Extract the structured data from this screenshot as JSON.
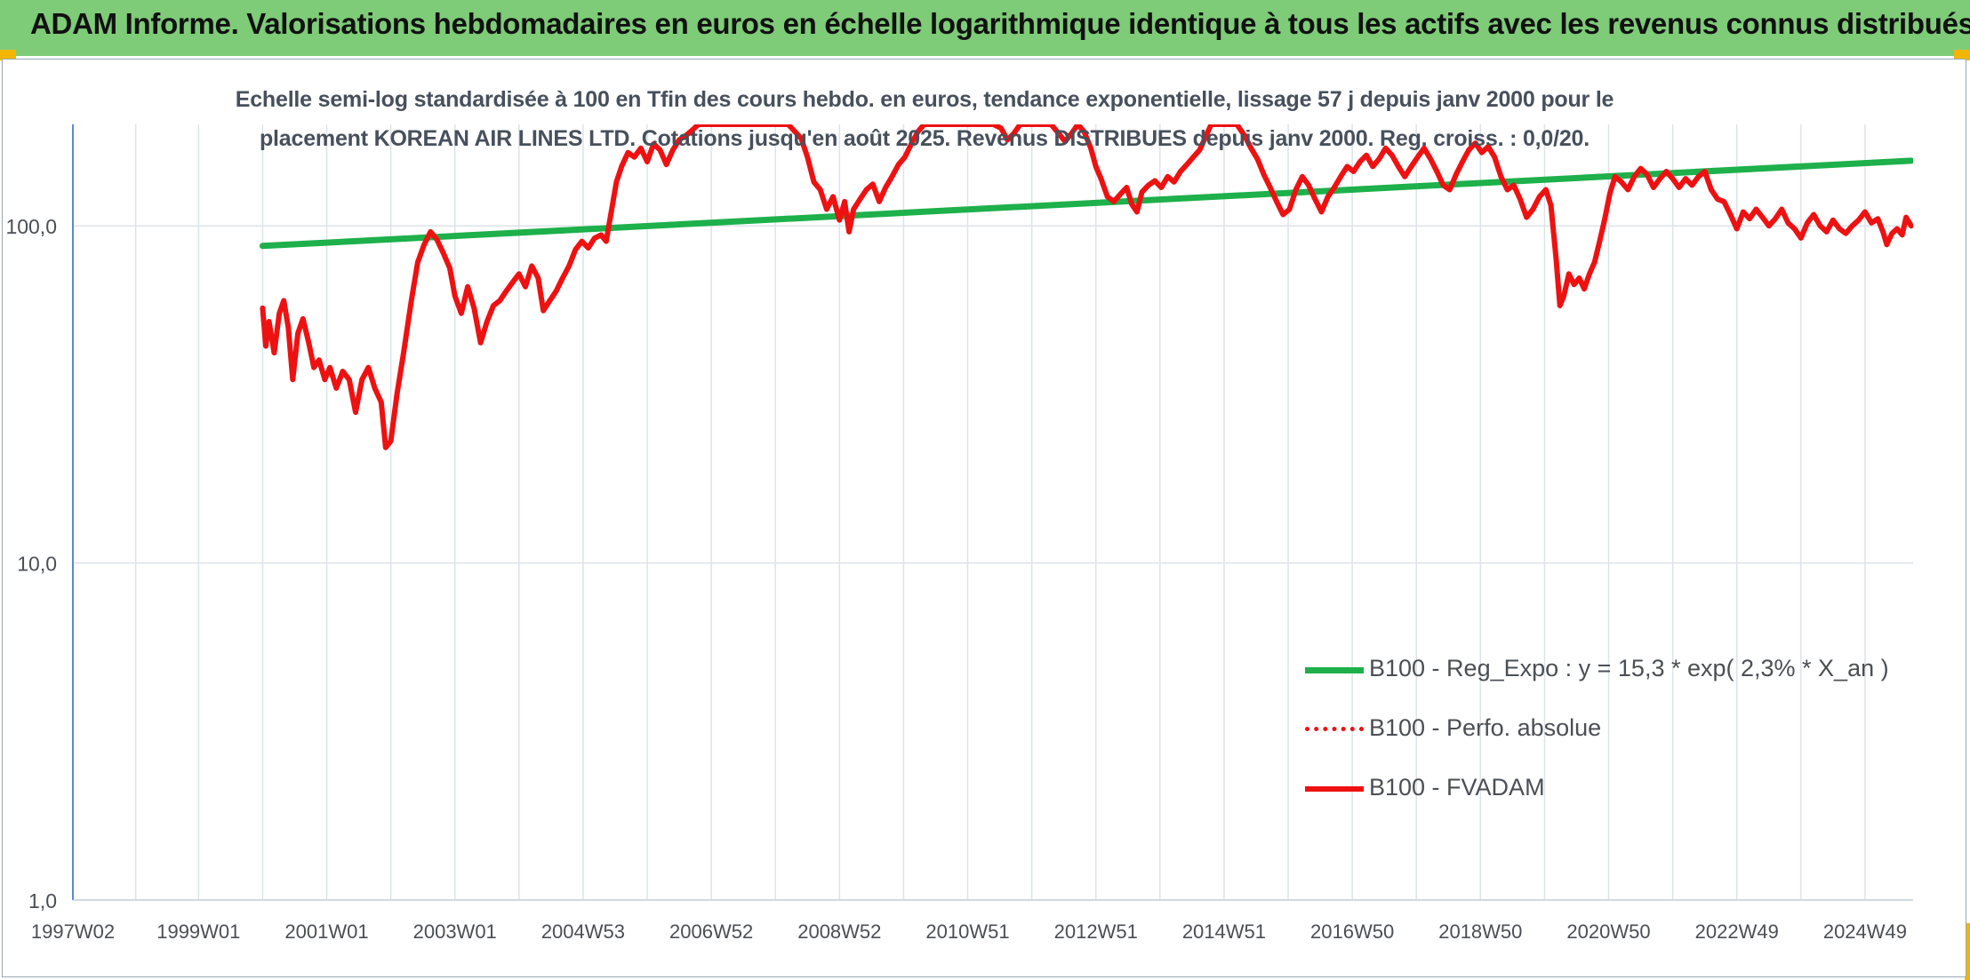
{
  "banner": {
    "title": "ADAM Informe. Valorisations hebdomadaires en euros en échelle logarithmique identique à tous les actifs avec les revenus connus distribués"
  },
  "subtitle": {
    "line1": "Echelle semi-log standardisée à 100 en Tfin des cours hebdo. en euros, tendance exponentielle, lissage 57 j depuis janv 2000 pour le",
    "line2": "placement KOREAN AIR LINES LTD. Cotations jusqu'en août 2025. Revenus DISTRIBUES depuis janv 2000. Reg. croiss. : 0,0/20."
  },
  "colors": {
    "banner": "#7ecb78",
    "regression": "#1db04b",
    "fvadam": "#ee1111",
    "perfo": "#ee1111",
    "grid": "#dde3ea",
    "axis": "#5b8cc4"
  },
  "chart_data": {
    "type": "line",
    "y_scale": "log",
    "ylim": [
      1,
      200
    ],
    "y_ticks": [
      {
        "value": 1,
        "label": "1,0"
      },
      {
        "value": 10,
        "label": "10,0"
      },
      {
        "value": 100,
        "label": "100,0"
      }
    ],
    "x_range": [
      1997.04,
      2025.75
    ],
    "x_ticks": [
      {
        "t": 1997.04,
        "label": "1997W02"
      },
      {
        "t": 1999.0,
        "label": "1999W01"
      },
      {
        "t": 2001.0,
        "label": "2001W01"
      },
      {
        "t": 2003.0,
        "label": "2003W01"
      },
      {
        "t": 2005.0,
        "label": "2004W53"
      },
      {
        "t": 2007.0,
        "label": "2006W52"
      },
      {
        "t": 2009.0,
        "label": "2008W52"
      },
      {
        "t": 2011.0,
        "label": "2010W51"
      },
      {
        "t": 2013.0,
        "label": "2012W51"
      },
      {
        "t": 2015.0,
        "label": "2014W51"
      },
      {
        "t": 2017.0,
        "label": "2016W50"
      },
      {
        "t": 2019.0,
        "label": "2018W50"
      },
      {
        "t": 2021.0,
        "label": "2020W50"
      },
      {
        "t": 2023.0,
        "label": "2022W49"
      },
      {
        "t": 2025.0,
        "label": "2024W49"
      }
    ],
    "grid": true,
    "legend_position": "bottom-right",
    "series": [
      {
        "name": "B100 - Reg_Expo : y = 15,3 * exp( 2,3% *  X_an )",
        "color": "#1db04b",
        "style": "solid",
        "width": 7,
        "points": [
          [
            2000.0,
            87.2
          ],
          [
            2025.72,
            156.0
          ]
        ]
      },
      {
        "name": "B100 - Perfo. absolue",
        "color": "#ee1111",
        "style": "dotted",
        "width": 5,
        "points": []
      },
      {
        "name": "B100 - FVADAM",
        "color": "#ee1111",
        "style": "solid",
        "width": 6,
        "points": [
          [
            2000.0,
            57
          ],
          [
            2000.05,
            44
          ],
          [
            2000.1,
            52
          ],
          [
            2000.18,
            42
          ],
          [
            2000.26,
            55
          ],
          [
            2000.33,
            60
          ],
          [
            2000.4,
            50
          ],
          [
            2000.47,
            35
          ],
          [
            2000.55,
            48
          ],
          [
            2000.63,
            53
          ],
          [
            2000.72,
            45
          ],
          [
            2000.8,
            38
          ],
          [
            2000.88,
            40
          ],
          [
            2000.97,
            35
          ],
          [
            2001.05,
            38
          ],
          [
            2001.15,
            33
          ],
          [
            2001.25,
            37
          ],
          [
            2001.35,
            35
          ],
          [
            2001.45,
            28
          ],
          [
            2001.55,
            35
          ],
          [
            2001.65,
            38
          ],
          [
            2001.75,
            33
          ],
          [
            2001.85,
            30
          ],
          [
            2001.92,
            22
          ],
          [
            2002.0,
            23
          ],
          [
            2002.1,
            32
          ],
          [
            2002.2,
            42
          ],
          [
            2002.32,
            60
          ],
          [
            2002.42,
            78
          ],
          [
            2002.52,
            88
          ],
          [
            2002.62,
            96
          ],
          [
            2002.72,
            91
          ],
          [
            2002.82,
            83
          ],
          [
            2002.92,
            75
          ],
          [
            2003.0,
            62
          ],
          [
            2003.1,
            55
          ],
          [
            2003.2,
            66
          ],
          [
            2003.3,
            57
          ],
          [
            2003.4,
            45
          ],
          [
            2003.5,
            52
          ],
          [
            2003.6,
            58
          ],
          [
            2003.7,
            60
          ],
          [
            2003.8,
            64
          ],
          [
            2003.9,
            68
          ],
          [
            2004.0,
            72
          ],
          [
            2004.1,
            66
          ],
          [
            2004.2,
            76
          ],
          [
            2004.3,
            70
          ],
          [
            2004.38,
            56
          ],
          [
            2004.48,
            60
          ],
          [
            2004.58,
            64
          ],
          [
            2004.68,
            70
          ],
          [
            2004.78,
            76
          ],
          [
            2004.88,
            85
          ],
          [
            2004.98,
            90
          ],
          [
            2005.08,
            86
          ],
          [
            2005.18,
            92
          ],
          [
            2005.28,
            94
          ],
          [
            2005.36,
            90
          ],
          [
            2005.44,
            110
          ],
          [
            2005.52,
            135
          ],
          [
            2005.6,
            150
          ],
          [
            2005.7,
            165
          ],
          [
            2005.8,
            160
          ],
          [
            2005.9,
            170
          ],
          [
            2006.0,
            155
          ],
          [
            2006.1,
            175
          ],
          [
            2006.2,
            168
          ],
          [
            2006.3,
            152
          ],
          [
            2006.4,
            168
          ],
          [
            2006.5,
            180
          ],
          [
            2006.6,
            185
          ],
          [
            2006.7,
            192
          ],
          [
            2006.8,
            200
          ],
          [
            2006.9,
            200
          ],
          [
            2007.0,
            200
          ],
          [
            2007.2,
            200
          ],
          [
            2007.5,
            200
          ],
          [
            2007.8,
            200
          ],
          [
            2008.0,
            200
          ],
          [
            2008.2,
            200
          ],
          [
            2008.4,
            182
          ],
          [
            2008.5,
            160
          ],
          [
            2008.6,
            135
          ],
          [
            2008.7,
            128
          ],
          [
            2008.8,
            112
          ],
          [
            2008.9,
            122
          ],
          [
            2009.0,
            104
          ],
          [
            2009.08,
            118
          ],
          [
            2009.15,
            96
          ],
          [
            2009.22,
            112
          ],
          [
            2009.32,
            120
          ],
          [
            2009.42,
            128
          ],
          [
            2009.52,
            133
          ],
          [
            2009.62,
            118
          ],
          [
            2009.72,
            130
          ],
          [
            2009.82,
            140
          ],
          [
            2009.92,
            152
          ],
          [
            2010.02,
            160
          ],
          [
            2010.12,
            175
          ],
          [
            2010.22,
            190
          ],
          [
            2010.32,
            200
          ],
          [
            2010.6,
            200
          ],
          [
            2011.0,
            200
          ],
          [
            2011.4,
            200
          ],
          [
            2011.52,
            195
          ],
          [
            2011.62,
            180
          ],
          [
            2011.72,
            188
          ],
          [
            2011.82,
            200
          ],
          [
            2012.0,
            200
          ],
          [
            2012.3,
            200
          ],
          [
            2012.42,
            188
          ],
          [
            2012.52,
            178
          ],
          [
            2012.62,
            188
          ],
          [
            2012.72,
            200
          ],
          [
            2012.82,
            190
          ],
          [
            2012.92,
            170
          ],
          [
            2013.0,
            150
          ],
          [
            2013.08,
            138
          ],
          [
            2013.18,
            122
          ],
          [
            2013.28,
            118
          ],
          [
            2013.38,
            124
          ],
          [
            2013.48,
            130
          ],
          [
            2013.56,
            116
          ],
          [
            2013.64,
            110
          ],
          [
            2013.72,
            126
          ],
          [
            2013.82,
            132
          ],
          [
            2013.92,
            136
          ],
          [
            2014.02,
            130
          ],
          [
            2014.12,
            140
          ],
          [
            2014.22,
            135
          ],
          [
            2014.32,
            145
          ],
          [
            2014.42,
            152
          ],
          [
            2014.52,
            160
          ],
          [
            2014.62,
            168
          ],
          [
            2014.72,
            185
          ],
          [
            2014.8,
            200
          ],
          [
            2015.0,
            200
          ],
          [
            2015.2,
            200
          ],
          [
            2015.32,
            185
          ],
          [
            2015.42,
            170
          ],
          [
            2015.52,
            158
          ],
          [
            2015.62,
            142
          ],
          [
            2015.72,
            130
          ],
          [
            2015.82,
            118
          ],
          [
            2015.92,
            108
          ],
          [
            2016.02,
            112
          ],
          [
            2016.12,
            128
          ],
          [
            2016.22,
            140
          ],
          [
            2016.32,
            132
          ],
          [
            2016.42,
            120
          ],
          [
            2016.52,
            110
          ],
          [
            2016.62,
            122
          ],
          [
            2016.72,
            130
          ],
          [
            2016.82,
            140
          ],
          [
            2016.92,
            150
          ],
          [
            2017.02,
            145
          ],
          [
            2017.12,
            155
          ],
          [
            2017.22,
            162
          ],
          [
            2017.32,
            150
          ],
          [
            2017.42,
            158
          ],
          [
            2017.52,
            170
          ],
          [
            2017.62,
            162
          ],
          [
            2017.72,
            150
          ],
          [
            2017.82,
            140
          ],
          [
            2017.92,
            150
          ],
          [
            2018.02,
            160
          ],
          [
            2018.12,
            170
          ],
          [
            2018.22,
            158
          ],
          [
            2018.32,
            145
          ],
          [
            2018.42,
            132
          ],
          [
            2018.52,
            128
          ],
          [
            2018.62,
            142
          ],
          [
            2018.72,
            155
          ],
          [
            2018.82,
            168
          ],
          [
            2018.92,
            176
          ],
          [
            2019.02,
            165
          ],
          [
            2019.12,
            172
          ],
          [
            2019.22,
            160
          ],
          [
            2019.32,
            140
          ],
          [
            2019.42,
            128
          ],
          [
            2019.52,
            132
          ],
          [
            2019.62,
            120
          ],
          [
            2019.72,
            106
          ],
          [
            2019.82,
            112
          ],
          [
            2019.92,
            122
          ],
          [
            2020.02,
            128
          ],
          [
            2020.1,
            115
          ],
          [
            2020.18,
            80
          ],
          [
            2020.24,
            58
          ],
          [
            2020.3,
            62
          ],
          [
            2020.38,
            72
          ],
          [
            2020.46,
            67
          ],
          [
            2020.54,
            70
          ],
          [
            2020.62,
            65
          ],
          [
            2020.7,
            72
          ],
          [
            2020.78,
            78
          ],
          [
            2020.86,
            90
          ],
          [
            2020.94,
            105
          ],
          [
            2021.02,
            125
          ],
          [
            2021.1,
            140
          ],
          [
            2021.2,
            135
          ],
          [
            2021.3,
            128
          ],
          [
            2021.4,
            140
          ],
          [
            2021.5,
            148
          ],
          [
            2021.6,
            142
          ],
          [
            2021.7,
            130
          ],
          [
            2021.8,
            138
          ],
          [
            2021.9,
            145
          ],
          [
            2022.0,
            138
          ],
          [
            2022.1,
            130
          ],
          [
            2022.2,
            138
          ],
          [
            2022.3,
            132
          ],
          [
            2022.4,
            140
          ],
          [
            2022.5,
            145
          ],
          [
            2022.6,
            128
          ],
          [
            2022.7,
            120
          ],
          [
            2022.8,
            118
          ],
          [
            2022.9,
            108
          ],
          [
            2023.0,
            98
          ],
          [
            2023.1,
            110
          ],
          [
            2023.2,
            105
          ],
          [
            2023.3,
            112
          ],
          [
            2023.4,
            106
          ],
          [
            2023.5,
            100
          ],
          [
            2023.6,
            105
          ],
          [
            2023.7,
            112
          ],
          [
            2023.8,
            102
          ],
          [
            2023.9,
            98
          ],
          [
            2024.0,
            92
          ],
          [
            2024.1,
            102
          ],
          [
            2024.2,
            108
          ],
          [
            2024.3,
            100
          ],
          [
            2024.4,
            96
          ],
          [
            2024.5,
            104
          ],
          [
            2024.6,
            98
          ],
          [
            2024.7,
            95
          ],
          [
            2024.8,
            100
          ],
          [
            2024.9,
            104
          ],
          [
            2025.0,
            110
          ],
          [
            2025.1,
            102
          ],
          [
            2025.2,
            105
          ],
          [
            2025.28,
            96
          ],
          [
            2025.34,
            88
          ],
          [
            2025.42,
            95
          ],
          [
            2025.5,
            98
          ],
          [
            2025.58,
            94
          ],
          [
            2025.64,
            106
          ],
          [
            2025.72,
            100
          ]
        ]
      }
    ]
  }
}
